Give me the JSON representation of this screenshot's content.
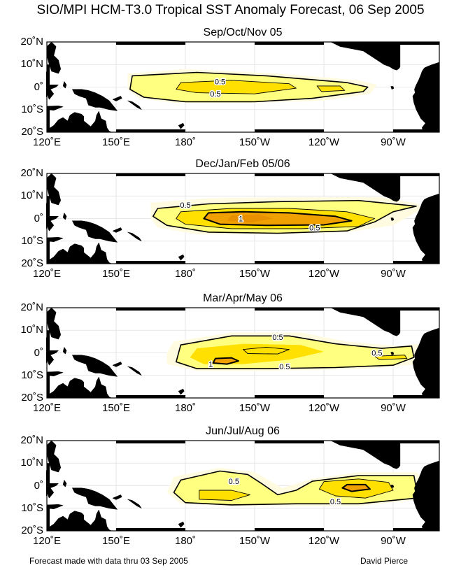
{
  "title": "SIO/MPI HCM-T3.0 Tropical SST Anomaly Forecast, 06 Sep 2005",
  "axes": {
    "lat_labels": [
      "20˚N",
      "10˚N",
      "0˚",
      "10˚S",
      "20˚S"
    ],
    "lon_labels": [
      "120˚E",
      "150˚E",
      "180˚",
      "150˚W",
      "120˚W",
      "90˚W"
    ],
    "lat_range": [
      -20,
      20
    ],
    "lon_range": [
      120,
      290
    ]
  },
  "colors": {
    "anomaly_low": "#ffff80",
    "anomaly_mid": "#ffe000",
    "anomaly_high": "#f0a000",
    "land": "#000000",
    "grid": "#e0e0e0"
  },
  "panels": [
    {
      "title": "Sep/Oct/Nov 05",
      "contours": [
        {
          "label": "0.5",
          "label_lon": 195,
          "label_lat": 2.5
        },
        {
          "label": "0.5",
          "label_lon": 193,
          "label_lat": -3
        }
      ]
    },
    {
      "title": "Dec/Jan/Feb 05/06",
      "contours": [
        {
          "label": "0.5",
          "label_lon": 180,
          "label_lat": 6
        },
        {
          "label": "1",
          "label_lon": 204,
          "label_lat": 0
        },
        {
          "label": "0.5",
          "label_lon": 236,
          "label_lat": -4
        }
      ]
    },
    {
      "title": "Mar/Apr/May 06",
      "contours": [
        {
          "label": "0.5",
          "label_lon": 220,
          "label_lat": 7
        },
        {
          "label": "1",
          "label_lon": 191,
          "label_lat": -5
        },
        {
          "label": "0.5",
          "label_lon": 263,
          "label_lat": 0
        },
        {
          "label": "0.5",
          "label_lon": 223,
          "label_lat": -6
        }
      ]
    },
    {
      "title": "Jun/Jul/Aug 06",
      "contours": [
        {
          "label": "0.5",
          "label_lon": 201,
          "label_lat": 2
        },
        {
          "label": "0.5",
          "label_lon": 245,
          "label_lat": -7
        }
      ]
    }
  ],
  "footer": {
    "left": "Forecast made with data thru 03 Sep 2005",
    "right": "David Pierce"
  }
}
